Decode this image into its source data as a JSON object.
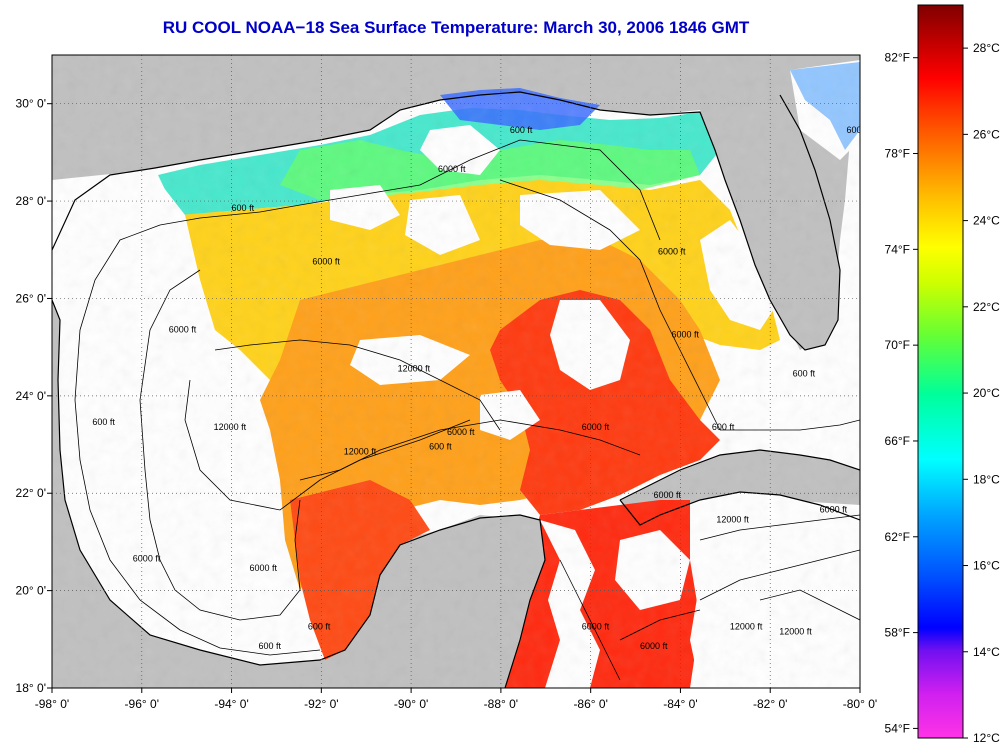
{
  "title": "RU COOL  NOAA−18  Sea Surface Temperature:  March 30, 2006 1846 GMT",
  "map": {
    "lon_range": [
      -98,
      -80
    ],
    "lat_range": [
      18,
      31
    ],
    "lon_ticks": [
      "-98° 0'",
      "-96° 0'",
      "-94° 0'",
      "-92° 0'",
      "-90° 0'",
      "-88° 0'",
      "-86° 0'",
      "-84° 0'",
      "-82° 0'",
      "-80° 0'"
    ],
    "lat_ticks": [
      "18° 0'",
      "20° 0'",
      "22° 0'",
      "24° 0'",
      "26° 0'",
      "28° 0'",
      "30° 0'"
    ],
    "grid": "dotted",
    "land_color": "#c0c0c0",
    "cloud_color": "#ffffff",
    "contour_labels": [
      {
        "text": "600 ft",
        "lon": -94,
        "lat": 27.8
      },
      {
        "text": "6000 ft",
        "lon": -95.4,
        "lat": 25.3
      },
      {
        "text": "600 ft",
        "lon": -97.1,
        "lat": 23.4
      },
      {
        "text": "12000 ft",
        "lon": -94.4,
        "lat": 23.3
      },
      {
        "text": "6000 ft",
        "lon": -96.2,
        "lat": 20.6
      },
      {
        "text": "6000 ft",
        "lon": -93.6,
        "lat": 20.4
      },
      {
        "text": "600 ft",
        "lon": -92.3,
        "lat": 19.2
      },
      {
        "text": "600 ft",
        "lon": -93.4,
        "lat": 18.8
      },
      {
        "text": "6000 ft",
        "lon": -92.2,
        "lat": 26.7
      },
      {
        "text": "12000 ft",
        "lon": -90.3,
        "lat": 24.5
      },
      {
        "text": "6000 ft",
        "lon": -89.2,
        "lat": 23.2
      },
      {
        "text": "12000 ft",
        "lon": -91.5,
        "lat": 22.8
      },
      {
        "text": "600 ft",
        "lon": -89.6,
        "lat": 22.9
      },
      {
        "text": "6000 ft",
        "lon": -86.2,
        "lat": 23.3
      },
      {
        "text": "6000 ft",
        "lon": -84.5,
        "lat": 26.9
      },
      {
        "text": "6000 ft",
        "lon": -84.2,
        "lat": 25.2
      },
      {
        "text": "6000 ft",
        "lon": -89.4,
        "lat": 28.6
      },
      {
        "text": "600 ft",
        "lon": -87.8,
        "lat": 29.4
      },
      {
        "text": "600 ft",
        "lon": -83.3,
        "lat": 23.3
      },
      {
        "text": "600 ft",
        "lon": -81.5,
        "lat": 24.4
      },
      {
        "text": "6000 ft",
        "lon": -80.9,
        "lat": 21.6
      },
      {
        "text": "12000 ft",
        "lon": -83.2,
        "lat": 21.4
      },
      {
        "text": "12000 ft",
        "lon": -82.9,
        "lat": 19.2
      },
      {
        "text": "12000 ft",
        "lon": -81.8,
        "lat": 19.1
      },
      {
        "text": "6000 ft",
        "lon": -84.6,
        "lat": 21.9
      },
      {
        "text": "6000 ft",
        "lon": -86.2,
        "lat": 19.2
      },
      {
        "text": "6000 ft",
        "lon": -84.9,
        "lat": 18.8
      },
      {
        "text": "600 ft",
        "lon": -80.3,
        "lat": 29.4
      }
    ]
  },
  "colorbar": {
    "min_c": 12,
    "max_c": 29,
    "celsius_ticks": [
      "12°C",
      "14°C",
      "16°C",
      "18°C",
      "20°C",
      "22°C",
      "24°C",
      "26°C",
      "28°C"
    ],
    "fahrenheit_ticks": [
      "54°F",
      "58°F",
      "62°F",
      "66°F",
      "70°F",
      "74°F",
      "78°F",
      "82°F"
    ],
    "colors": [
      "#ff33e6",
      "#a020f0",
      "#0000ff",
      "#0070ff",
      "#00e6ff",
      "#00ff99",
      "#66ff33",
      "#ffff00",
      "#ffaa00",
      "#ff5500",
      "#ff0000",
      "#b00000",
      "#800000"
    ]
  }
}
